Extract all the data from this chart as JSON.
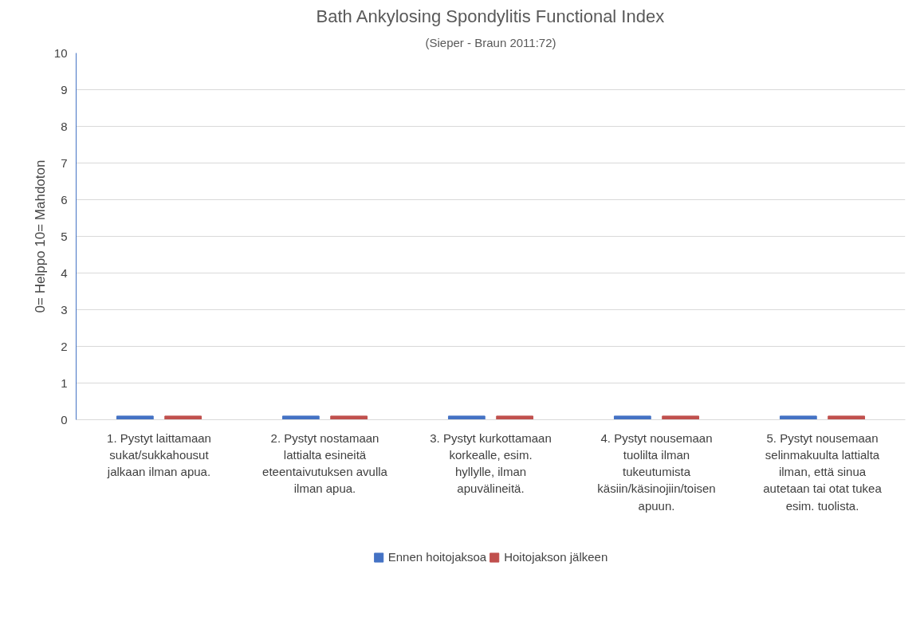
{
  "chart_data": {
    "type": "bar",
    "title": "Bath Ankylosing Spondylitis Functional Index",
    "subtitle": "(Sieper - Braun 2011:72)",
    "ylabel": "0= Helppo 10= Mahdoton",
    "categories": [
      "1. Pystyt laittamaan sukat/sukkahousut jalkaan ilman apua.",
      "2. Pystyt nostamaan lattialta esineitä eteentaivutuksen avulla ilman apua.",
      "3. Pystyt kurkottamaan korkealle, esim. hyllylle, ilman apuvälineitä.",
      "4. Pystyt nousemaan tuolilta ilman tukeutumista käsiin/käsinojiin/toisen apuun.",
      "5. Pystyt nousemaan selinmakuulta lattialta ilman, että sinua autetaan tai otat tukea esim. tuolista."
    ],
    "series": [
      {
        "name": "Ennen hoitojaksoa",
        "color": "#4472c4",
        "values": [
          0.1,
          0.1,
          0.1,
          0.1,
          0.1
        ]
      },
      {
        "name": "Hoitojakson jälkeen",
        "color": "#c0504d",
        "values": [
          0.1,
          0.1,
          0.1,
          0.1,
          0.1
        ]
      }
    ],
    "ylim": [
      0,
      10
    ],
    "yticks": [
      0,
      1,
      2,
      3,
      4,
      5,
      6,
      7,
      8,
      9,
      10
    ],
    "grid": "y",
    "legend": "bottom"
  }
}
